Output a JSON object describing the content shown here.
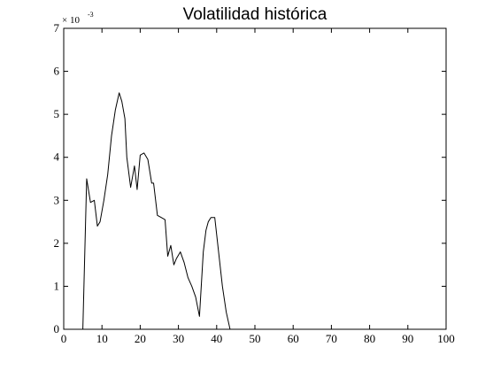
{
  "chart_data": {
    "type": "line",
    "title": "Volatilidad histórica",
    "xlabel": "",
    "ylabel": "",
    "xlim": [
      0,
      100
    ],
    "ylim": [
      0,
      7
    ],
    "y_scale_multiplier": "× 10",
    "y_scale_exponent": "-3",
    "grid": false,
    "x_ticks": [
      "0",
      "10",
      "20",
      "30",
      "40",
      "50",
      "60",
      "70",
      "80",
      "90",
      "100"
    ],
    "y_ticks": [
      "0",
      "1",
      "2",
      "3",
      "4",
      "5",
      "6",
      "7"
    ],
    "series": [
      {
        "x": [
          5,
          6,
          7,
          8,
          8.8,
          9.5,
          10.5,
          11.5,
          12.5,
          13.5,
          14.5,
          15.2,
          16,
          16.5,
          17.5,
          18.5,
          19.2,
          20,
          21,
          22,
          23,
          23.5,
          24.5,
          25.5,
          26.5,
          27.2,
          28,
          28.8,
          29.5,
          30.5,
          31.5,
          32.5,
          33.5,
          34.5,
          35.5,
          36.5,
          37.2,
          37.8,
          38.5,
          39.5,
          40.5,
          41.5,
          42.5,
          43.5,
          44.5,
          45.5,
          46.5,
          47.5,
          48.5,
          50,
          55,
          60
        ],
        "y": [
          0,
          3.5,
          2.95,
          3.0,
          2.4,
          2.5,
          3.0,
          3.6,
          4.5,
          5.1,
          5.5,
          5.3,
          4.9,
          4.0,
          3.3,
          3.8,
          3.25,
          4.05,
          4.1,
          3.95,
          3.4,
          3.4,
          2.65,
          2.6,
          2.55,
          1.7,
          1.95,
          1.5,
          1.65,
          1.8,
          1.55,
          1.2,
          1.0,
          0.75,
          0.3,
          1.8,
          2.3,
          2.5,
          2.6,
          2.6,
          1.8,
          1.0,
          0.4,
          0.0,
          0.0,
          0.0,
          0.0,
          0.0,
          0.0,
          0.0,
          0.0,
          0.0
        ]
      }
    ]
  }
}
